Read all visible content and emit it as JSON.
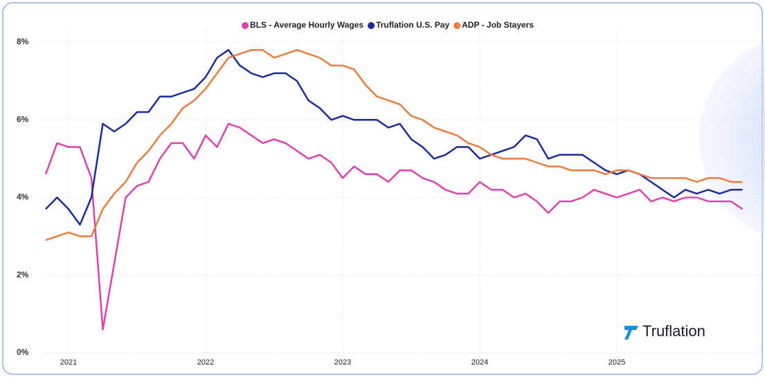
{
  "chart_data": {
    "type": "line",
    "categories": [
      null,
      null,
      "2021",
      null,
      null,
      null,
      null,
      null,
      null,
      null,
      null,
      null,
      null,
      null,
      "2022",
      null,
      null,
      null,
      null,
      null,
      null,
      null,
      null,
      null,
      null,
      null,
      "2023",
      null,
      null,
      null,
      null,
      null,
      null,
      null,
      null,
      null,
      null,
      null,
      "2024",
      null,
      null,
      null,
      null,
      null,
      null,
      null,
      null,
      null,
      null,
      null,
      "2025",
      null,
      null,
      null,
      null,
      null,
      null,
      null,
      null,
      null,
      null,
      null
    ],
    "series": [
      {
        "name": "BLS - Average Hourly Wages",
        "color": "#e040a8",
        "values": [
          4.6,
          5.4,
          5.3,
          5.3,
          4.5,
          0.6,
          2.3,
          4.0,
          4.3,
          4.4,
          5.0,
          5.4,
          5.4,
          5.0,
          5.6,
          5.3,
          5.9,
          5.8,
          5.6,
          5.4,
          5.5,
          5.4,
          5.2,
          5.0,
          5.1,
          4.9,
          4.5,
          4.8,
          4.6,
          4.6,
          4.4,
          4.7,
          4.7,
          4.5,
          4.4,
          4.2,
          4.1,
          4.1,
          4.4,
          4.2,
          4.2,
          4.0,
          4.1,
          3.9,
          3.6,
          3.9,
          3.9,
          4.0,
          4.2,
          4.1,
          4.0,
          4.1,
          4.2,
          3.9,
          4.0,
          3.9,
          4.0,
          4.0,
          3.9,
          3.9,
          3.9,
          3.7
        ]
      },
      {
        "name": "Truflation U.S. Pay",
        "color": "#1a2a9c",
        "values": [
          3.7,
          4.0,
          3.7,
          3.3,
          4.0,
          5.9,
          5.7,
          5.9,
          6.2,
          6.2,
          6.6,
          6.6,
          6.7,
          6.8,
          7.1,
          7.6,
          7.8,
          7.4,
          7.2,
          7.1,
          7.2,
          7.2,
          7.0,
          6.5,
          6.3,
          6.0,
          6.1,
          6.0,
          6.0,
          6.0,
          5.8,
          5.9,
          5.5,
          5.3,
          5.0,
          5.1,
          5.3,
          5.3,
          5.0,
          5.1,
          5.2,
          5.3,
          5.6,
          5.5,
          5.0,
          5.1,
          5.1,
          5.1,
          4.9,
          4.7,
          4.6,
          4.7,
          4.6,
          4.4,
          4.2,
          4.0,
          4.2,
          4.1,
          4.2,
          4.1,
          4.2,
          4.2
        ]
      },
      {
        "name": "ADP - Job Stayers",
        "color": "#ee7a3c",
        "values": [
          2.9,
          3.0,
          3.1,
          3.0,
          3.0,
          3.7,
          4.1,
          4.4,
          4.9,
          5.2,
          5.6,
          5.9,
          6.3,
          6.5,
          6.8,
          7.2,
          7.6,
          7.7,
          7.8,
          7.8,
          7.6,
          7.7,
          7.8,
          7.7,
          7.6,
          7.4,
          7.4,
          7.3,
          6.9,
          6.6,
          6.5,
          6.4,
          6.1,
          6.0,
          5.8,
          5.7,
          5.6,
          5.4,
          5.3,
          5.1,
          5.0,
          5.0,
          5.0,
          4.9,
          4.8,
          4.8,
          4.7,
          4.7,
          4.7,
          4.6,
          4.7,
          4.7,
          4.6,
          4.5,
          4.5,
          4.5,
          4.5,
          4.4,
          4.5,
          4.5,
          4.4,
          4.4
        ]
      }
    ],
    "ylim": [
      0,
      8
    ],
    "yticks": [
      {
        "value": 0,
        "label": "0%"
      },
      {
        "value": 2,
        "label": "2%"
      },
      {
        "value": 4,
        "label": "4%"
      },
      {
        "value": 6,
        "label": "6%"
      },
      {
        "value": 8,
        "label": "8%"
      }
    ],
    "grid": true,
    "legend": "top",
    "watermark": "Truflation"
  }
}
